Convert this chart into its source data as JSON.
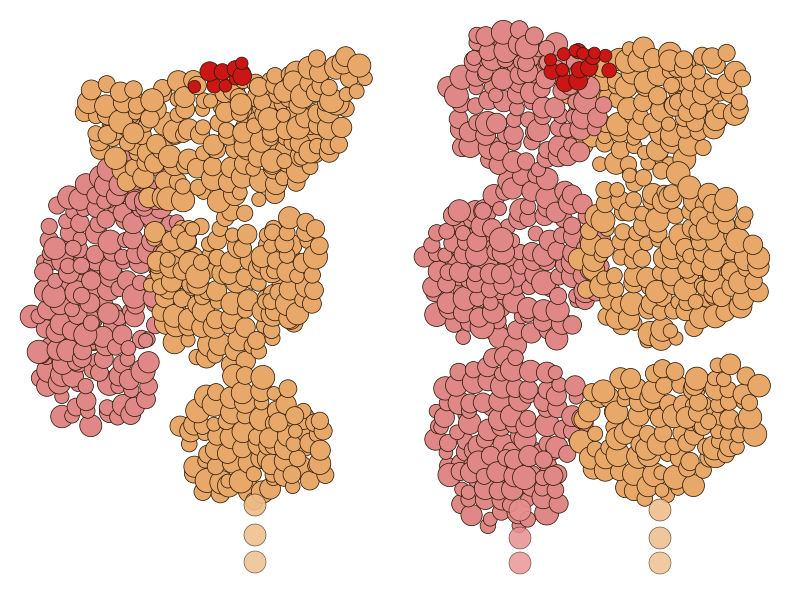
{
  "figure_width": 8.0,
  "figure_height": 6.0,
  "dpi": 100,
  "bg_color": "#ffffff",
  "outline_color": "#2a1a08",
  "tan": "#E8A86A",
  "tan2": "#D49558",
  "pink": "#E08888",
  "pink2": "#CC7070",
  "red": "#CC1515",
  "dot_tan": "#EEBC88",
  "dot_pink": "#E89090"
}
